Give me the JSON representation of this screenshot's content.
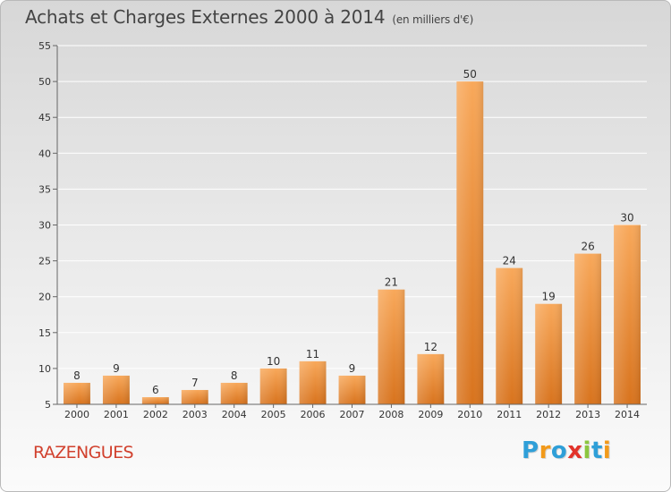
{
  "header": {
    "title": "Achats et Charges Externes 2000 à 2014",
    "subtitle": "(en milliers d'€)"
  },
  "footer": {
    "place": "RAZENGUES",
    "logo_letters": [
      {
        "char": "P",
        "color": "#2f9fd8"
      },
      {
        "char": "r",
        "color": "#f29a1a"
      },
      {
        "char": "o",
        "color": "#2f9fd8"
      },
      {
        "char": "x",
        "color": "#e2332a"
      },
      {
        "char": "i",
        "color": "#8cc63f"
      },
      {
        "char": "t",
        "color": "#2f9fd8"
      },
      {
        "char": "i",
        "color": "#f29a1a"
      }
    ]
  },
  "chart_data": {
    "type": "bar",
    "title": "Achats et Charges Externes 2000 à 2014",
    "subtitle": "(en milliers d'€)",
    "xlabel": "",
    "ylabel": "",
    "categories": [
      "2000",
      "2001",
      "2002",
      "2003",
      "2004",
      "2005",
      "2006",
      "2007",
      "2008",
      "2009",
      "2010",
      "2011",
      "2012",
      "2013",
      "2014"
    ],
    "values": [
      8,
      9,
      6,
      7,
      8,
      10,
      11,
      9,
      21,
      12,
      50,
      24,
      19,
      26,
      30
    ],
    "ylim": [
      5,
      55
    ],
    "yticks": [
      5,
      10,
      15,
      20,
      25,
      30,
      35,
      40,
      45,
      50,
      55
    ],
    "grid": true,
    "legend": "none",
    "colors": {
      "bar_top": "#f8a85a",
      "bar_bottom": "#d8731d",
      "grid": "#ffffff",
      "axis": "#666666"
    }
  }
}
